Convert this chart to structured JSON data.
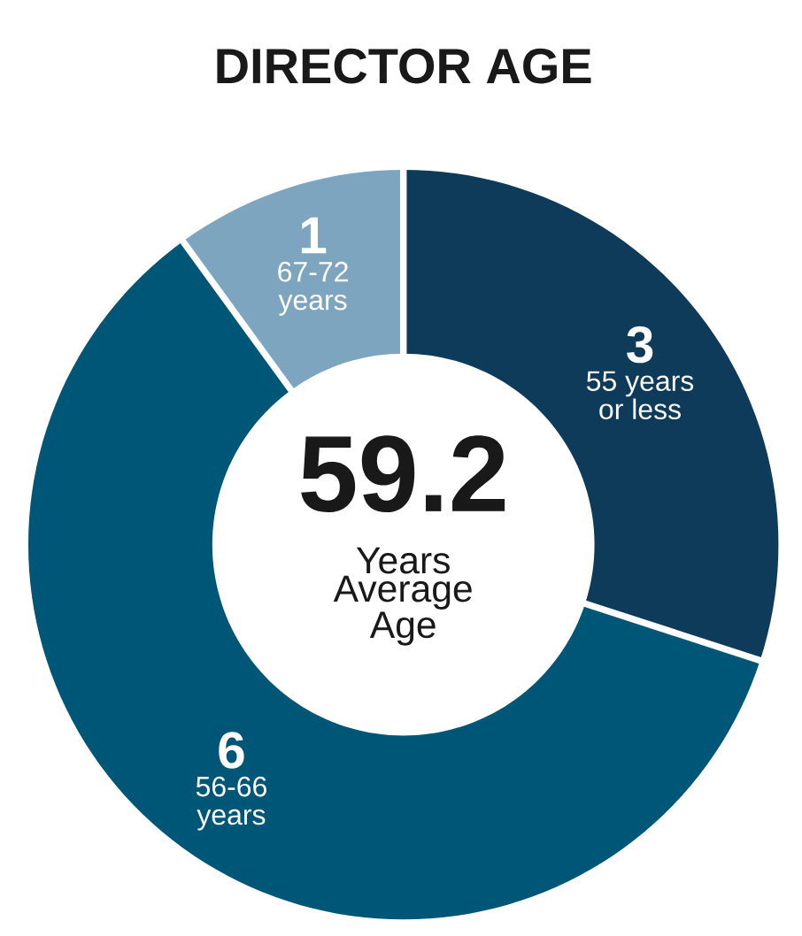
{
  "chart_data": {
    "type": "donut",
    "title": "DIRECTOR AGE",
    "categories": [
      "55 years or less",
      "56-66 years",
      "67-72 years"
    ],
    "values": [
      3,
      6,
      1
    ],
    "colors": [
      "#0e3b5a",
      "#005677",
      "#7ea5c0"
    ],
    "data_labels": true,
    "annotations": [
      "59.2",
      "Years Average Age"
    ]
  }
}
